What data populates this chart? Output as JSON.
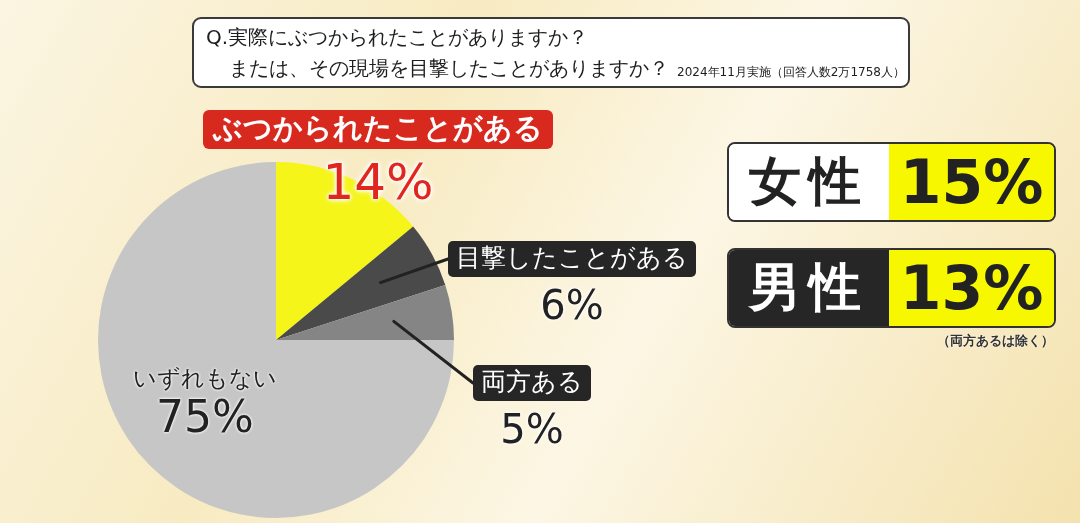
{
  "chart_data": {
    "type": "pie",
    "title": "Q.実際にぶつかられたことがありますか？",
    "subtitle": "または、その現場を目撃したことがありますか？",
    "categories": [
      "ぶつかられたことがある",
      "目撃したことがある",
      "両方ある",
      "いずれもない"
    ],
    "values": [
      14,
      6,
      5,
      75
    ],
    "colors": [
      "#f5f51a",
      "#4a4a4a",
      "#858585",
      "#c6c6c6"
    ],
    "value_labels": [
      "14%",
      "6%",
      "5%",
      "75%"
    ],
    "annotations": [
      "2024年11月実施（回答人数2万1758人）",
      "女性",
      "15%",
      "男性",
      "13%",
      "（両方あるは除く）"
    ]
  }
}
